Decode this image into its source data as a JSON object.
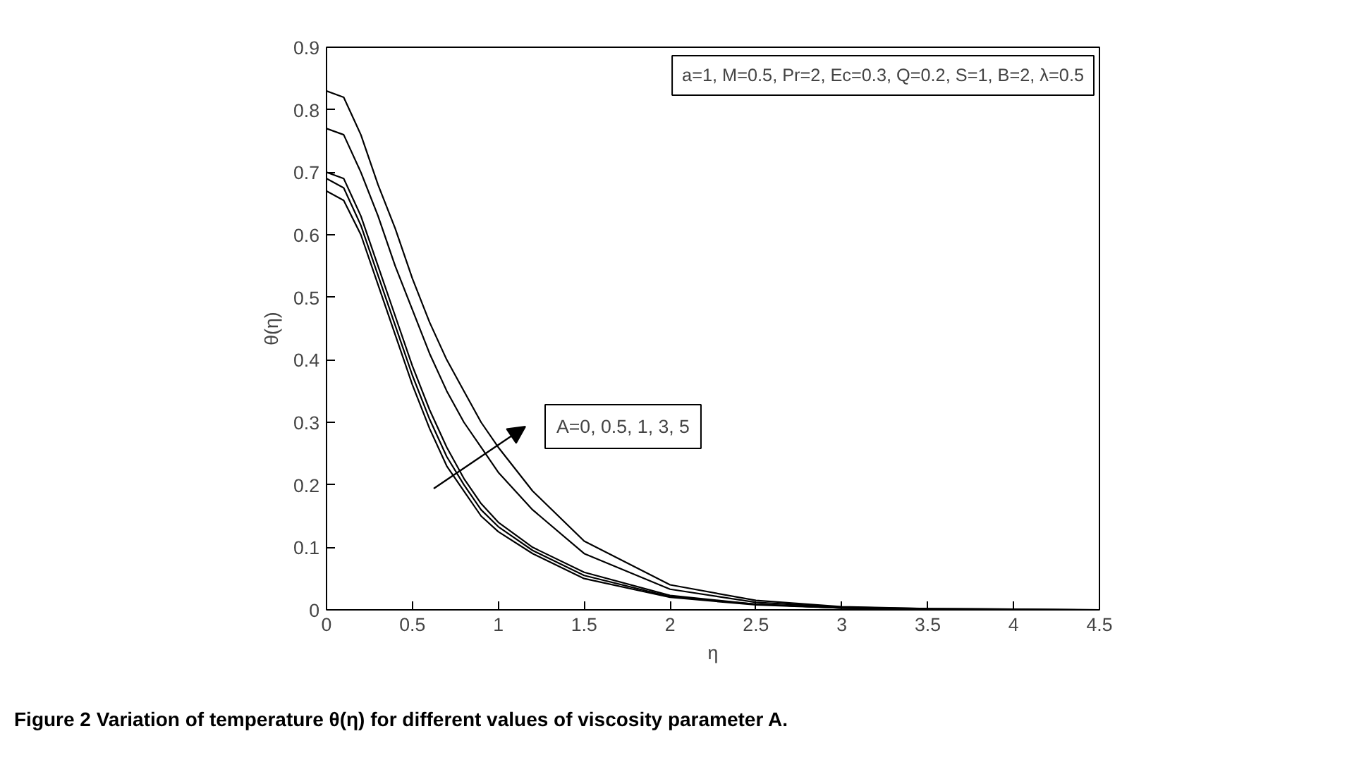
{
  "chart_data": {
    "type": "line",
    "xlabel": "η",
    "ylabel": "θ(η)",
    "x": [
      0,
      0.1,
      0.2,
      0.3,
      0.4,
      0.5,
      0.6,
      0.7,
      0.8,
      0.9,
      1.0,
      1.2,
      1.5,
      2,
      2.5,
      3,
      3.5,
      4,
      4.5
    ],
    "series": [
      {
        "color": "#000000",
        "values": [
          0.67,
          0.655,
          0.6,
          0.52,
          0.44,
          0.36,
          0.29,
          0.23,
          0.19,
          0.15,
          0.125,
          0.09,
          0.05,
          0.02,
          0.008,
          0.003,
          0.001,
          0,
          0
        ]
      },
      {
        "color": "#000000",
        "values": [
          0.69,
          0.675,
          0.615,
          0.535,
          0.455,
          0.375,
          0.305,
          0.245,
          0.2,
          0.16,
          0.133,
          0.095,
          0.055,
          0.021,
          0.009,
          0.003,
          0.001,
          0,
          0
        ]
      },
      {
        "color": "#000000",
        "values": [
          0.7,
          0.69,
          0.63,
          0.55,
          0.47,
          0.39,
          0.32,
          0.26,
          0.21,
          0.17,
          0.14,
          0.1,
          0.06,
          0.023,
          0.009,
          0.003,
          0.001,
          0,
          0
        ]
      },
      {
        "color": "#000000",
        "values": [
          0.77,
          0.76,
          0.7,
          0.63,
          0.55,
          0.48,
          0.41,
          0.35,
          0.3,
          0.26,
          0.22,
          0.16,
          0.09,
          0.033,
          0.012,
          0.004,
          0.002,
          0.001,
          0
        ]
      },
      {
        "color": "#000000",
        "values": [
          0.83,
          0.82,
          0.76,
          0.68,
          0.61,
          0.53,
          0.46,
          0.4,
          0.35,
          0.3,
          0.26,
          0.19,
          0.11,
          0.04,
          0.015,
          0.005,
          0.002,
          0.001,
          0
        ]
      }
    ],
    "xlim": [
      0,
      4.5
    ],
    "ylim": [
      0,
      0.9
    ],
    "xticks": [
      0,
      0.5,
      1,
      1.5,
      2,
      2.5,
      3,
      3.5,
      4,
      4.5
    ],
    "yticks": [
      0,
      0.1,
      0.2,
      0.3,
      0.4,
      0.5,
      0.6,
      0.7,
      0.8,
      0.9
    ],
    "grid": false,
    "marker": "none",
    "line_style": "solid",
    "annotations": [
      "a=1, M=0.5, Pr=2, Ec=0.3, Q=0.2, S=1, B=2, λ=0.5",
      "A=0, 0.5, 1, 3, 5",
      "Figure 2  Variation of temperature θ(η) for different values of viscosity parameter A."
    ]
  }
}
